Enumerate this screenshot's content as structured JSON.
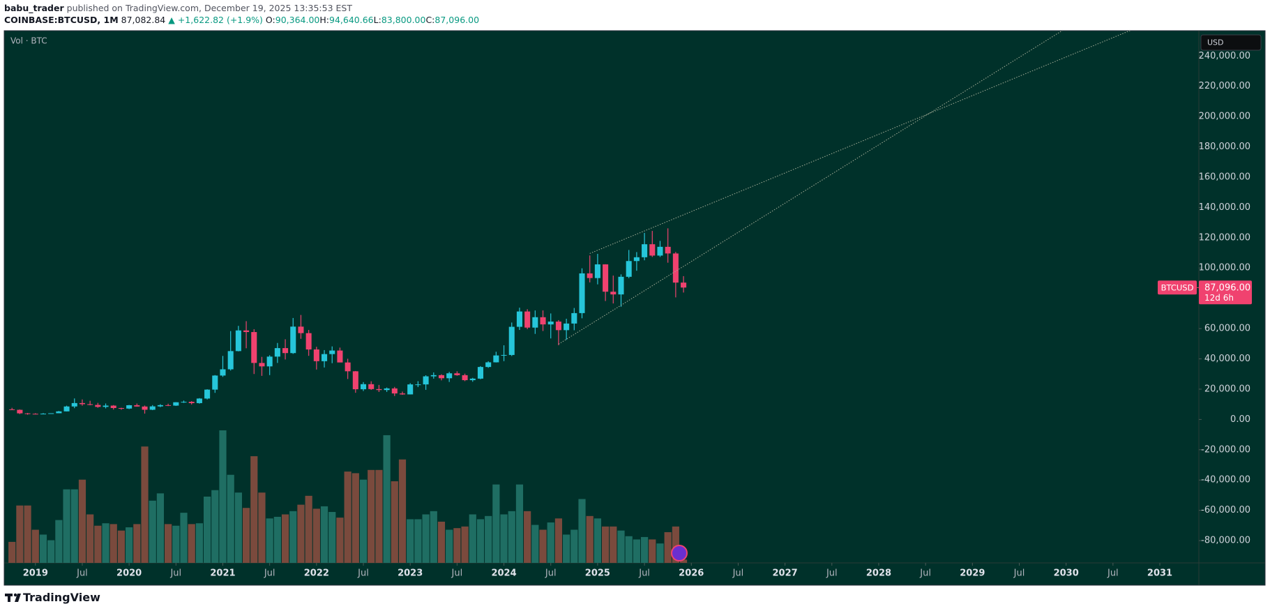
{
  "header": {
    "author": "babu_trader",
    "published": "published on TradingView.com, December 19, 2025 13:35:53 EST",
    "symbol": "COINBASE:BTCUSD, 1M",
    "last": "87,082.84",
    "change": "▲ +1,622.82 (+1.9%)",
    "ohlc": [
      {
        "label": "O:",
        "value": "90,364.00"
      },
      {
        "label": "H:",
        "value": "94,640.66"
      },
      {
        "label": "L:",
        "value": "83,800.00"
      },
      {
        "label": "C:",
        "value": "87,096.00"
      }
    ]
  },
  "footer": {
    "brand": "TradingView"
  },
  "chart_data": {
    "type": "candlestick",
    "x": [
      "2018-10",
      "2018-11",
      "2018-12",
      "2019-01",
      "2019-02",
      "2019-03",
      "2019-04",
      "2019-05",
      "2019-06",
      "2019-07",
      "2019-08",
      "2019-09",
      "2019-10",
      "2019-11",
      "2019-12",
      "2020-01",
      "2020-02",
      "2020-03",
      "2020-04",
      "2020-05",
      "2020-06",
      "2020-07",
      "2020-08",
      "2020-09",
      "2020-10",
      "2020-11",
      "2020-12",
      "2021-01",
      "2021-02",
      "2021-03",
      "2021-04",
      "2021-05",
      "2021-06",
      "2021-07",
      "2021-08",
      "2021-09",
      "2021-10",
      "2021-11",
      "2021-12",
      "2022-01",
      "2022-02",
      "2022-03",
      "2022-04",
      "2022-05",
      "2022-06",
      "2022-07",
      "2022-08",
      "2022-09",
      "2022-10",
      "2022-11",
      "2022-12",
      "2023-01",
      "2023-02",
      "2023-03",
      "2023-04",
      "2023-05",
      "2023-06",
      "2023-07",
      "2023-08",
      "2023-09",
      "2023-10",
      "2023-11",
      "2023-12",
      "2024-01",
      "2024-02",
      "2024-03",
      "2024-04",
      "2024-05",
      "2024-06",
      "2024-07",
      "2024-08",
      "2024-09",
      "2024-10",
      "2024-11",
      "2024-12",
      "2025-01",
      "2025-02",
      "2025-03",
      "2025-04",
      "2025-05",
      "2025-06",
      "2025-07",
      "2025-08",
      "2025-09",
      "2025-10",
      "2025-11",
      "2025-12"
    ],
    "open": [
      6626,
      6365,
      4030,
      3740,
      3440,
      3820,
      4100,
      5330,
      8570,
      10820,
      10090,
      9590,
      8290,
      9150,
      7540,
      7190,
      9390,
      8540,
      6410,
      8630,
      9450,
      9140,
      11350,
      11650,
      10780,
      13800,
      19700,
      28990,
      33110,
      45140,
      58790,
      57720,
      37300,
      35040,
      41490,
      47110,
      43820,
      61300,
      57000,
      46210,
      38470,
      43160,
      45510,
      37630,
      31800,
      19940,
      23300,
      20050,
      19420,
      20490,
      17170,
      16540,
      23130,
      23140,
      28470,
      29250,
      27210,
      30470,
      29230,
      25940,
      26960,
      34650,
      37720,
      42260,
      42580,
      61170,
      71290,
      60650,
      67520,
      62750,
      64620,
      58970,
      63330,
      70220,
      96450,
      93350,
      102400,
      84350,
      82550,
      94200,
      104600,
      107100,
      115700,
      108200,
      114000,
      109600,
      90364
    ],
    "high": [
      7680,
      6600,
      4300,
      4120,
      4200,
      4100,
      5600,
      9090,
      13880,
      13200,
      12330,
      10950,
      10540,
      9500,
      7750,
      9590,
      10500,
      9190,
      9470,
      10080,
      10380,
      11450,
      12490,
      12080,
      14100,
      19940,
      29300,
      41950,
      58350,
      61790,
      64900,
      59590,
      41330,
      42410,
      50500,
      52940,
      67000,
      69000,
      59100,
      47990,
      45800,
      48230,
      47450,
      40080,
      31980,
      24670,
      25200,
      22800,
      21090,
      21470,
      18390,
      23960,
      25250,
      29190,
      31050,
      29820,
      31430,
      31800,
      30230,
      27480,
      35200,
      38430,
      44700,
      48970,
      64000,
      73800,
      72800,
      71980,
      72000,
      70000,
      65600,
      66500,
      73600,
      99800,
      108300,
      109350,
      102500,
      95000,
      95800,
      111900,
      110500,
      123200,
      124500,
      117900,
      126200,
      110600,
      94640.66
    ],
    "low": [
      6200,
      3555,
      3128,
      3350,
      3380,
      3710,
      4100,
      5330,
      7450,
      9100,
      9350,
      7710,
      7300,
      6515,
      6430,
      6860,
      8450,
      3860,
      6150,
      8110,
      8830,
      8940,
      10930,
      9880,
      10430,
      13200,
      17570,
      28130,
      32300,
      44960,
      47000,
      30000,
      28800,
      29280,
      37330,
      39600,
      43290,
      53250,
      42000,
      32950,
      34320,
      37160,
      37700,
      26700,
      17600,
      18780,
      19540,
      18150,
      18190,
      15480,
      16260,
      16500,
      21400,
      19550,
      26940,
      25810,
      24750,
      28860,
      25300,
      24900,
      26550,
      34100,
      37620,
      38500,
      41880,
      59100,
      59600,
      56500,
      58400,
      53500,
      49000,
      52550,
      58900,
      66800,
      90500,
      89200,
      78200,
      76600,
      74400,
      93300,
      98200,
      105100,
      107300,
      107300,
      103500,
      80600,
      83800
    ],
    "close": [
      6365,
      4030,
      3740,
      3440,
      3820,
      4100,
      5330,
      8570,
      10820,
      10090,
      9590,
      8290,
      9150,
      7540,
      7190,
      9390,
      8540,
      6410,
      8630,
      9450,
      9140,
      11350,
      11650,
      10780,
      13800,
      19700,
      28990,
      33110,
      45140,
      58790,
      57720,
      37300,
      35040,
      41490,
      47110,
      43820,
      61300,
      57000,
      46210,
      38470,
      43160,
      45510,
      37630,
      31800,
      19940,
      23300,
      20050,
      19420,
      20490,
      17170,
      16540,
      23130,
      23140,
      28470,
      29250,
      27210,
      30470,
      29230,
      25940,
      26960,
      34650,
      37720,
      42260,
      42580,
      61170,
      71290,
      60650,
      67520,
      62750,
      64620,
      58970,
      63330,
      70220,
      96450,
      93350,
      102400,
      84350,
      82550,
      94200,
      104600,
      107100,
      115700,
      108200,
      114000,
      109600,
      90364,
      87096
    ],
    "volume": [
      26000,
      71000,
      71000,
      41000,
      35000,
      28000,
      53000,
      91000,
      91000,
      103000,
      60000,
      46000,
      49000,
      48000,
      40000,
      44000,
      48000,
      144000,
      77000,
      86000,
      48000,
      46000,
      62000,
      48000,
      49000,
      82000,
      90000,
      164000,
      109000,
      87000,
      68000,
      132000,
      87000,
      55000,
      57000,
      60000,
      64000,
      72000,
      83000,
      67000,
      70000,
      63000,
      56000,
      113000,
      111000,
      103000,
      115000,
      115000,
      158000,
      101000,
      128000,
      54000,
      54000,
      60000,
      64000,
      51000,
      41000,
      43000,
      45000,
      60000,
      54000,
      58000,
      97000,
      60000,
      64000,
      97000,
      64000,
      47000,
      41000,
      50000,
      55000,
      35000,
      41000,
      79000,
      58000,
      55000,
      45000,
      45000,
      40000,
      33000,
      29000,
      32000,
      29000,
      24000,
      38000,
      45000,
      4000
    ],
    "volume_label": "Vol · BTC",
    "up_color": "#26c6da",
    "down_color": "#f0426f",
    "volume_up_color": "#1f6e63",
    "volume_down_color": "#7a4a3d",
    "xlim": [
      "2018-09",
      "2031-06"
    ],
    "xticks": [
      {
        "value": "2019-01",
        "label": "2019"
      },
      {
        "value": "2019-07",
        "label": "Jul"
      },
      {
        "value": "2020-01",
        "label": "2020"
      },
      {
        "value": "2020-07",
        "label": "Jul"
      },
      {
        "value": "2021-01",
        "label": "2021"
      },
      {
        "value": "2021-07",
        "label": "Jul"
      },
      {
        "value": "2022-01",
        "label": "2022"
      },
      {
        "value": "2022-07",
        "label": "Jul"
      },
      {
        "value": "2023-01",
        "label": "2023"
      },
      {
        "value": "2023-07",
        "label": "Jul"
      },
      {
        "value": "2024-01",
        "label": "2024"
      },
      {
        "value": "2024-07",
        "label": "Jul"
      },
      {
        "value": "2025-01",
        "label": "2025"
      },
      {
        "value": "2025-07",
        "label": "Jul"
      },
      {
        "value": "2026-01",
        "label": "2026"
      },
      {
        "value": "2026-07",
        "label": "Jul"
      },
      {
        "value": "2027-01",
        "label": "2027"
      },
      {
        "value": "2027-07",
        "label": "Jul"
      },
      {
        "value": "2028-01",
        "label": "2028"
      },
      {
        "value": "2028-07",
        "label": "Jul"
      },
      {
        "value": "2029-01",
        "label": "2029"
      },
      {
        "value": "2029-07",
        "label": "Jul"
      },
      {
        "value": "2030-01",
        "label": "2030"
      },
      {
        "value": "2030-07",
        "label": "Jul"
      },
      {
        "value": "2031-01",
        "label": "2031"
      }
    ],
    "ylim": [
      -94700,
      256700
    ],
    "yticks": [
      {
        "value": -80000,
        "label": "-80,000.00"
      },
      {
        "value": -60000,
        "label": "-60,000.00"
      },
      {
        "value": -40000,
        "label": "-40,000.00"
      },
      {
        "value": -20000,
        "label": "-20,000.00"
      },
      {
        "value": 0,
        "label": "0.00"
      },
      {
        "value": 20000,
        "label": "20,000.00"
      },
      {
        "value": 40000,
        "label": "40,000.00"
      },
      {
        "value": 60000,
        "label": "60,000.00"
      },
      {
        "value": 80000,
        "label": "80,000.00"
      },
      {
        "value": 100000,
        "label": "100,000.00"
      },
      {
        "value": 120000,
        "label": "120,000.00"
      },
      {
        "value": 140000,
        "label": "140,000.00"
      },
      {
        "value": 160000,
        "label": "160,000.00"
      },
      {
        "value": 180000,
        "label": "180,000.00"
      },
      {
        "value": 200000,
        "label": "200,000.00"
      },
      {
        "value": 220000,
        "label": "220,000.00"
      },
      {
        "value": 240000,
        "label": "240,000.00"
      }
    ],
    "grid": false,
    "trendlines": [
      {
        "color": "#a8b09a",
        "points": [
          {
            "x": "2024-12",
            "y": 109600
          },
          {
            "x": "2028-08",
            "y": 203200
          }
        ]
      },
      {
        "color": "#a8b09a",
        "points": [
          {
            "x": "2024-08",
            "y": 49750
          },
          {
            "x": "2028-08",
            "y": 203800
          }
        ]
      }
    ],
    "last_price": {
      "symbol": "BTCUSD",
      "value": 87096,
      "label": "87,096.00",
      "countdown": "12d 6h",
      "color": "#f0426f"
    },
    "currency": "USD"
  }
}
